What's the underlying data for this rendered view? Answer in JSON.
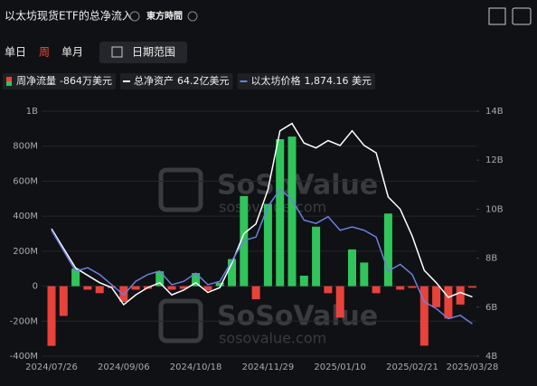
{
  "header": {
    "title": "以太坊现货ETF的总净流入",
    "timezone": "東方時間"
  },
  "controls": {
    "periods": [
      "单日",
      "周",
      "单月"
    ],
    "active_period": 1,
    "date_range": "日期范围"
  },
  "watermark": {
    "brand": "SoSoValue",
    "site": "sosovalue.com"
  },
  "chart_data": {
    "type": "bar",
    "categories": [
      "2024/07/26",
      null,
      null,
      null,
      null,
      null,
      "2024/09/06",
      null,
      null,
      null,
      null,
      null,
      "2024/10/18",
      null,
      null,
      null,
      null,
      null,
      "2024/11/29",
      null,
      null,
      null,
      null,
      null,
      "2025/01/10",
      null,
      null,
      null,
      null,
      null,
      "2025/02/21",
      null,
      null,
      null,
      null,
      "2025/03/28"
    ],
    "ylim": [
      -400,
      1000
    ],
    "yticks": [
      {
        "value": -400,
        "label": "-400M"
      },
      {
        "value": -200,
        "label": "-200M"
      },
      0,
      {
        "value": 200,
        "label": "200M"
      },
      {
        "value": 400,
        "label": "400M"
      },
      {
        "value": 600,
        "label": "600M"
      },
      {
        "value": 800,
        "label": "800M"
      },
      {
        "value": 1000,
        "label": "1B"
      }
    ],
    "y2lim": [
      4,
      14
    ],
    "y2ticks": [
      {
        "value": 4,
        "label": "4B"
      },
      {
        "value": 6,
        "label": "6B"
      },
      {
        "value": 8,
        "label": "8B"
      },
      {
        "value": 10,
        "label": "10B"
      },
      {
        "value": 12,
        "label": "12B"
      },
      {
        "value": 14,
        "label": "14B"
      }
    ],
    "y3lim": [
      1400,
      5000
    ],
    "grid": true,
    "series": [
      {
        "name": "周净流量",
        "legend_value": "-864万美元",
        "type": "bar",
        "color": "#2fc55a",
        "negative_color": "#e9423b",
        "values": [
          -341,
          -170,
          100,
          -20,
          -40,
          -10,
          -90,
          -20,
          -15,
          85,
          -20,
          -15,
          75,
          -25,
          20,
          155,
          515,
          -75,
          470,
          840,
          855,
          60,
          340,
          -40,
          -180,
          210,
          135,
          -40,
          415,
          -20,
          -10,
          -340,
          -120,
          -185,
          -105,
          -8.64
        ]
      },
      {
        "name": "总净资产",
        "legend_value": "64.2亿美元",
        "type": "line",
        "axis": "y2",
        "color": "#ffffff",
        "values": [
          9.2,
          8.4,
          7.6,
          7.3,
          7.0,
          6.8,
          6.1,
          6.5,
          6.8,
          7.0,
          6.5,
          6.7,
          7.0,
          6.6,
          6.8,
          7.8,
          9.0,
          9.4,
          10.8,
          13.2,
          13.5,
          12.7,
          12.5,
          12.8,
          12.6,
          13.2,
          12.6,
          12.3,
          10.5,
          10.0,
          8.9,
          7.5,
          7.0,
          6.4,
          6.6,
          6.42
        ]
      },
      {
        "name": "以太坊价格",
        "legend_value": "1,874.16 美元",
        "type": "line",
        "axis": "y3",
        "color": "#6c7fe0",
        "values": [
          3250,
          2950,
          2650,
          2700,
          2600,
          2450,
          2300,
          2500,
          2600,
          2650,
          2450,
          2500,
          2620,
          2450,
          2500,
          2800,
          3100,
          3150,
          3600,
          3850,
          3700,
          3400,
          3350,
          3450,
          3250,
          3300,
          3250,
          3150,
          2650,
          2750,
          2600,
          2200,
          2100,
          1950,
          2000,
          1874.16
        ]
      }
    ]
  }
}
